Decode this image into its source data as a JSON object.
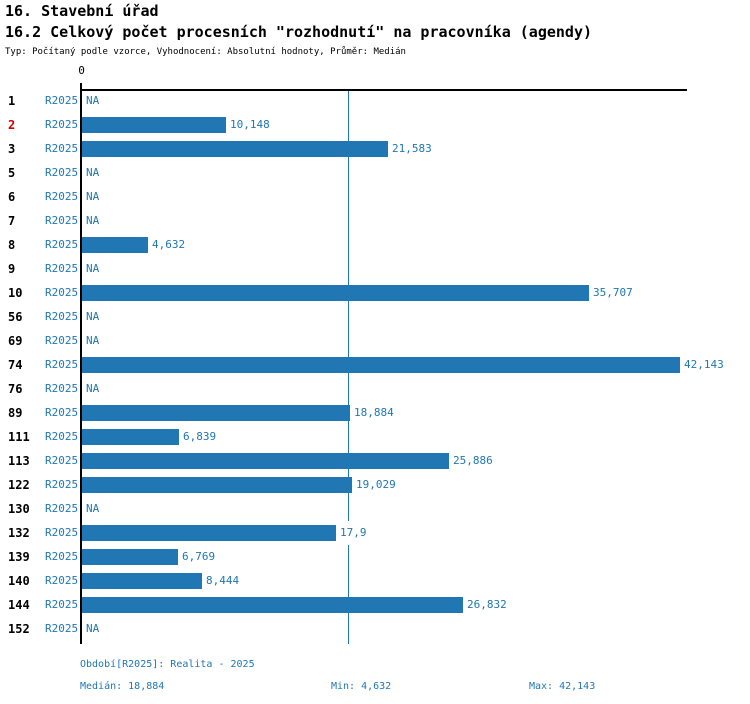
{
  "header": {
    "title": "16. Stavební úřad",
    "subtitle": "16.2 Celkový počet procesních \"rozhodnutí\" na pracovníka (agendy)",
    "meta": "Typ: Počítaný podle vzorce, Vyhodnocení: Absolutní hodnoty, Průměr: Medián"
  },
  "colors": {
    "accent": "#2077b4",
    "highlight_red": "#cc0000",
    "axis": "#000000"
  },
  "chart_data": {
    "type": "bar",
    "orientation": "horizontal",
    "title": "16.2 Celkový počet procesních \"rozhodnutí\" na pracovníka (agendy)",
    "series_name": "R2025",
    "zero_label": "0",
    "xlim": [
      0,
      42900
    ],
    "grid": false,
    "median_line_value": 18884,
    "median": 18884,
    "min": 4632,
    "max": 42143,
    "na_text": "NA",
    "rows": [
      {
        "category": "1",
        "series": "R2025",
        "value": null,
        "label": "NA",
        "highlighted": false
      },
      {
        "category": "2",
        "series": "R2025",
        "value": 10148,
        "label": "10,148",
        "highlighted": true
      },
      {
        "category": "3",
        "series": "R2025",
        "value": 21583,
        "label": "21,583",
        "highlighted": false
      },
      {
        "category": "5",
        "series": "R2025",
        "value": null,
        "label": "NA",
        "highlighted": false
      },
      {
        "category": "6",
        "series": "R2025",
        "value": null,
        "label": "NA",
        "highlighted": false
      },
      {
        "category": "7",
        "series": "R2025",
        "value": null,
        "label": "NA",
        "highlighted": false
      },
      {
        "category": "8",
        "series": "R2025",
        "value": 4632,
        "label": "4,632",
        "highlighted": false
      },
      {
        "category": "9",
        "series": "R2025",
        "value": null,
        "label": "NA",
        "highlighted": false
      },
      {
        "category": "10",
        "series": "R2025",
        "value": 35707,
        "label": "35,707",
        "highlighted": false
      },
      {
        "category": "56",
        "series": "R2025",
        "value": null,
        "label": "NA",
        "highlighted": false
      },
      {
        "category": "69",
        "series": "R2025",
        "value": null,
        "label": "NA",
        "highlighted": false
      },
      {
        "category": "74",
        "series": "R2025",
        "value": 42143,
        "label": "42,143",
        "highlighted": false
      },
      {
        "category": "76",
        "series": "R2025",
        "value": null,
        "label": "NA",
        "highlighted": false
      },
      {
        "category": "89",
        "series": "R2025",
        "value": 18884,
        "label": "18,884",
        "highlighted": false
      },
      {
        "category": "111",
        "series": "R2025",
        "value": 6839,
        "label": "6,839",
        "highlighted": false
      },
      {
        "category": "113",
        "series": "R2025",
        "value": 25886,
        "label": "25,886",
        "highlighted": false
      },
      {
        "category": "122",
        "series": "R2025",
        "value": 19029,
        "label": "19,029",
        "highlighted": false
      },
      {
        "category": "130",
        "series": "R2025",
        "value": null,
        "label": "NA",
        "highlighted": false
      },
      {
        "category": "132",
        "series": "R2025",
        "value": 17900,
        "label": "17,9",
        "highlighted": false
      },
      {
        "category": "139",
        "series": "R2025",
        "value": 6769,
        "label": "6,769",
        "highlighted": false
      },
      {
        "category": "140",
        "series": "R2025",
        "value": 8444,
        "label": "8,444",
        "highlighted": false
      },
      {
        "category": "144",
        "series": "R2025",
        "value": 26832,
        "label": "26,832",
        "highlighted": false
      },
      {
        "category": "152",
        "series": "R2025",
        "value": null,
        "label": "NA",
        "highlighted": false
      }
    ]
  },
  "footer": {
    "period": "Období[R2025]: Realita - 2025",
    "median": "Medián: 18,884",
    "min": "Min: 4,632",
    "max": "Max: 42,143"
  }
}
